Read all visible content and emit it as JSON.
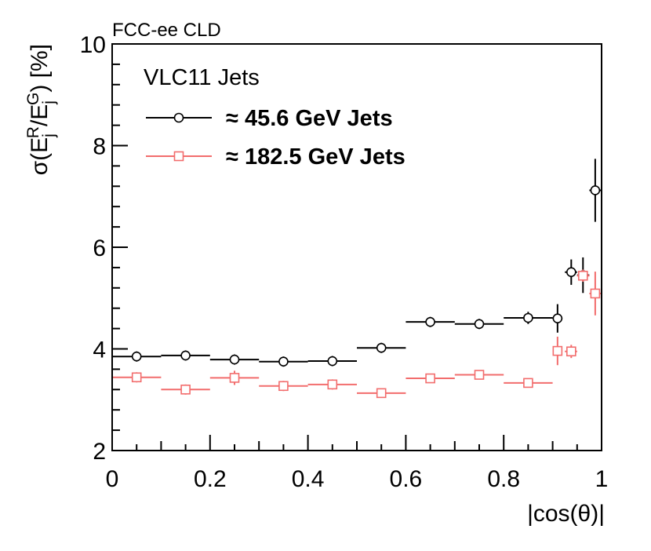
{
  "chart_data": {
    "type": "scatter",
    "header": "FCC-ee CLD",
    "xlabel": "|cos(θ)|",
    "ylabel": "σ(E_j^R/E_j^G) [%]",
    "ylabel_parts": {
      "prefix": "σ(E",
      "sub1": "j",
      "sup1": "R",
      "slash": "/E",
      "sub2": "j",
      "sup2": "G",
      "suffix": ") [%]"
    },
    "xlim": [
      0,
      1
    ],
    "ylim": [
      2,
      10
    ],
    "x_ticks": [
      0,
      0.2,
      0.4,
      0.6,
      0.8,
      1
    ],
    "x_tick_labels": [
      "0",
      "0.2",
      "0.4",
      "0.6",
      "0.8",
      "1"
    ],
    "y_ticks": [
      2,
      4,
      6,
      8,
      10
    ],
    "y_tick_labels": [
      "2",
      "4",
      "6",
      "8",
      "10"
    ],
    "legend_title": "VLC11 Jets",
    "series": [
      {
        "name": "≈ 45.6 GeV Jets",
        "color": "#000000",
        "marker": "circle",
        "points": [
          {
            "x": 0.05,
            "xlo": 0.0,
            "xhi": 0.1,
            "y": 3.85,
            "yerr": 0.1
          },
          {
            "x": 0.15,
            "xlo": 0.1,
            "xhi": 0.2,
            "y": 3.87,
            "yerr": 0.1
          },
          {
            "x": 0.25,
            "xlo": 0.2,
            "xhi": 0.3,
            "y": 3.79,
            "yerr": 0.1
          },
          {
            "x": 0.35,
            "xlo": 0.3,
            "xhi": 0.4,
            "y": 3.75,
            "yerr": 0.1
          },
          {
            "x": 0.45,
            "xlo": 0.4,
            "xhi": 0.5,
            "y": 3.76,
            "yerr": 0.1
          },
          {
            "x": 0.55,
            "xlo": 0.5,
            "xhi": 0.6,
            "y": 4.02,
            "yerr": 0.1
          },
          {
            "x": 0.65,
            "xlo": 0.6,
            "xhi": 0.7,
            "y": 4.53,
            "yerr": 0.1
          },
          {
            "x": 0.75,
            "xlo": 0.7,
            "xhi": 0.8,
            "y": 4.49,
            "yerr": 0.1
          },
          {
            "x": 0.85,
            "xlo": 0.8,
            "xhi": 0.9,
            "y": 4.61,
            "yerr": 0.12
          },
          {
            "x": 0.91,
            "xlo": 0.9,
            "xhi": 0.92,
            "y": 4.6,
            "yerr": 0.28
          },
          {
            "x": 0.938,
            "xlo": 0.925,
            "xhi": 0.95,
            "y": 5.51,
            "yerr": 0.25
          },
          {
            "x": 0.962,
            "xlo": 0.95,
            "xhi": 0.975,
            "y": 5.45,
            "yerr": 0.35
          },
          {
            "x": 0.987,
            "xlo": 0.975,
            "xhi": 1.0,
            "y": 7.12,
            "yerr": 0.62
          }
        ]
      },
      {
        "name": "≈ 182.5 GeV Jets",
        "color": "#f26d6d",
        "marker": "square",
        "points": [
          {
            "x": 0.05,
            "xlo": 0.0,
            "xhi": 0.1,
            "y": 3.44,
            "yerr": 0.1
          },
          {
            "x": 0.15,
            "xlo": 0.1,
            "xhi": 0.2,
            "y": 3.2,
            "yerr": 0.1
          },
          {
            "x": 0.25,
            "xlo": 0.2,
            "xhi": 0.3,
            "y": 3.43,
            "yerr": 0.14
          },
          {
            "x": 0.35,
            "xlo": 0.3,
            "xhi": 0.4,
            "y": 3.27,
            "yerr": 0.1
          },
          {
            "x": 0.45,
            "xlo": 0.4,
            "xhi": 0.5,
            "y": 3.3,
            "yerr": 0.1
          },
          {
            "x": 0.55,
            "xlo": 0.5,
            "xhi": 0.6,
            "y": 3.13,
            "yerr": 0.06
          },
          {
            "x": 0.65,
            "xlo": 0.6,
            "xhi": 0.7,
            "y": 3.42,
            "yerr": 0.08
          },
          {
            "x": 0.75,
            "xlo": 0.7,
            "xhi": 0.8,
            "y": 3.49,
            "yerr": 0.08
          },
          {
            "x": 0.85,
            "xlo": 0.8,
            "xhi": 0.9,
            "y": 3.33,
            "yerr": 0.05
          },
          {
            "x": 0.91,
            "xlo": 0.9,
            "xhi": 0.92,
            "y": 3.96,
            "yerr": 0.28
          },
          {
            "x": 0.938,
            "xlo": 0.925,
            "xhi": 0.95,
            "y": 3.95,
            "yerr": 0.13
          },
          {
            "x": 0.962,
            "xlo": 0.95,
            "xhi": 0.975,
            "y": 5.44,
            "yerr": 0.12
          },
          {
            "x": 0.987,
            "xlo": 0.975,
            "xhi": 1.0,
            "y": 5.09,
            "yerr": 0.43
          }
        ]
      }
    ]
  }
}
